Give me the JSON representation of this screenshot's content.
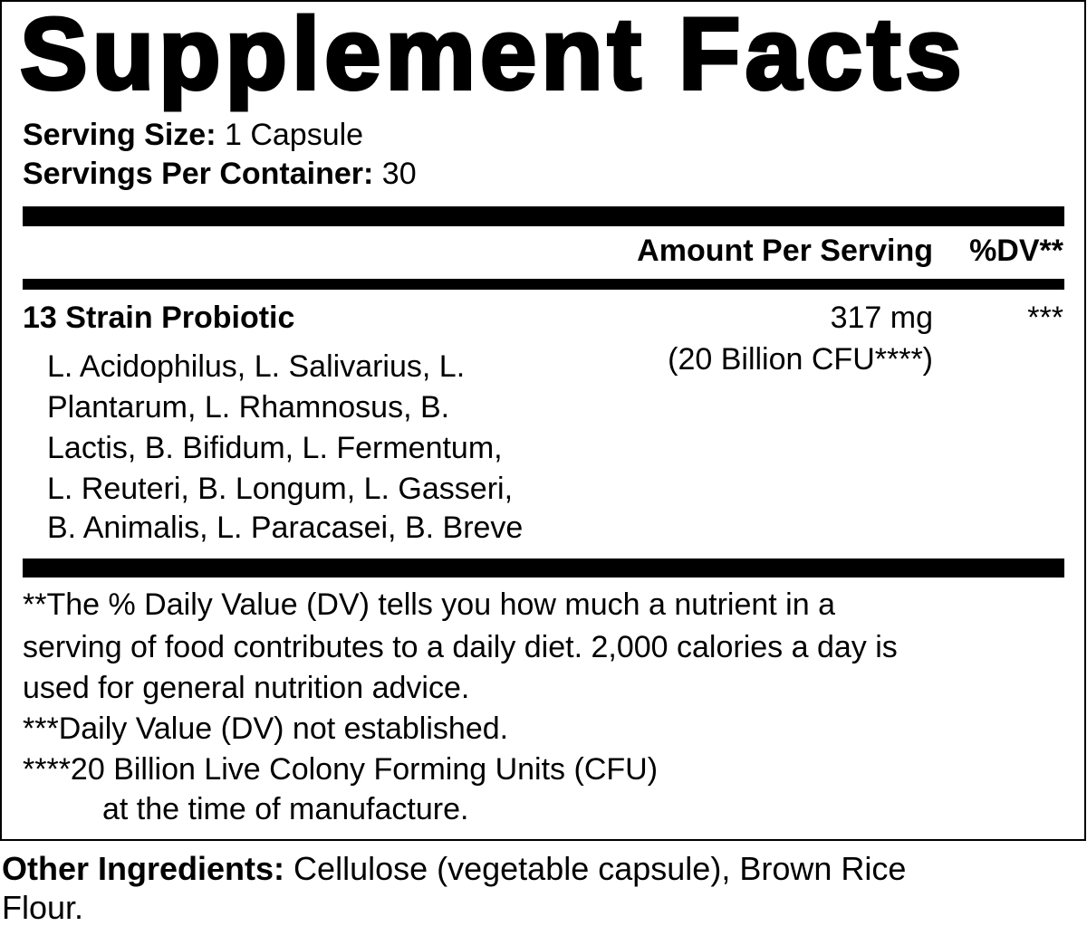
{
  "title": "Supplement Facts",
  "serving": [
    {
      "label": "Serving Size:",
      "value": "1 Capsule"
    },
    {
      "label": "Servings Per Container:",
      "value": "30"
    }
  ],
  "columns": {
    "amount": "Amount Per Serving",
    "dv": "%DV**"
  },
  "ingredient": {
    "name": "13 Strain Probiotic",
    "amount": "317 mg",
    "amount_note": "(20 Billion CFU****)",
    "dv": "***",
    "strains": [
      "L. Acidophilus, L. Salivarius, L.",
      "Plantarum, L. Rhamnosus, B.",
      "Lactis, B. Bifidum, L. Fermentum,",
      "L. Reuteri, B. Longum, L. Gasseri,",
      "B. Animalis, L. Paracasei, B. Breve"
    ]
  },
  "footnotes": [
    "**The % Daily Value (DV) tells you how much a nutrient in a",
    "serving of food contributes to a daily diet. 2,000 calories a day is",
    "used for general nutrition advice.",
    "***Daily Value (DV) not established.",
    "****20 Billion Live Colony Forming Units (CFU)",
    "at the time of manufacture."
  ],
  "other": {
    "label": "Other Ingredients:",
    "value": "Cellulose (vegetable capsule), Brown Rice",
    "value_line2": "Flour."
  }
}
